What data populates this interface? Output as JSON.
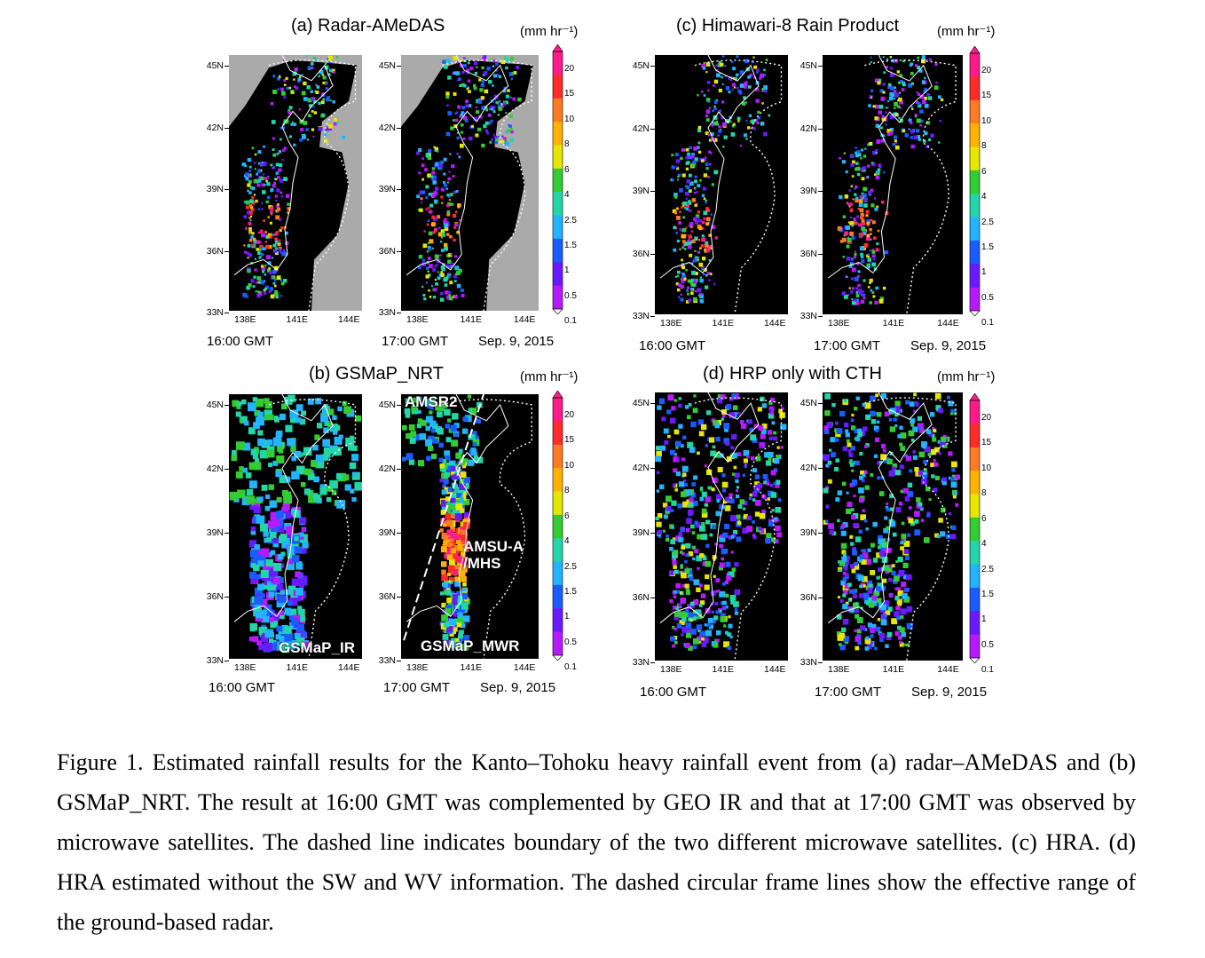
{
  "panels": {
    "a": {
      "title": "(a) Radar-AMeDAS",
      "unit": "(mm hr⁻¹)"
    },
    "b": {
      "title": "(b) GSMaP_NRT",
      "unit": "(mm hr⁻¹)"
    },
    "c": {
      "title": "(c) Himawari-8 Rain Product",
      "unit": "(mm hr⁻¹)"
    },
    "d": {
      "title": "(d) HRP only with CTH",
      "unit": "(mm hr⁻¹)"
    }
  },
  "axes": {
    "lat_labels": [
      "45N",
      "42N",
      "39N",
      "36N",
      "33N"
    ],
    "lon_labels": [
      "138E",
      "141E",
      "144E"
    ]
  },
  "times": {
    "t1": "16:00 GMT",
    "t2": "17:00 GMT",
    "date": "Sep. 9, 2015"
  },
  "colorbar": {
    "levels": [
      "20",
      "15",
      "10",
      "8",
      "6",
      "4",
      "2.5",
      "1.5",
      "1",
      "0.5",
      "0.1"
    ],
    "colors": [
      "#ff1a8c",
      "#ff2a2a",
      "#ff7a22",
      "#ffb300",
      "#e6e600",
      "#33cc33",
      "#22d6a8",
      "#22b4ff",
      "#1a5cff",
      "#6a1aff",
      "#b61aff"
    ]
  },
  "map_labels": {
    "amsr2": "AMSR2",
    "amsu": "AMSU-A\n/MHS",
    "gsmap_ir": "GSMaP_IR",
    "gsmap_mwr": "GSMaP_MWR"
  },
  "caption": "Figure 1. Estimated rainfall results for the Kanto–Tohoku heavy rainfall event from (a) radar–AMeDAS and (b) GSMaP_NRT. The result at 16:00 GMT was complemented by GEO IR and that at 17:00 GMT was observed by microwave satellites. The dashed line indicates boundary of the two different microwave satellites. (c) HRA. (d) HRA estimated without the SW and WV information. The dashed circular frame lines show the effective range of the ground-based radar."
}
